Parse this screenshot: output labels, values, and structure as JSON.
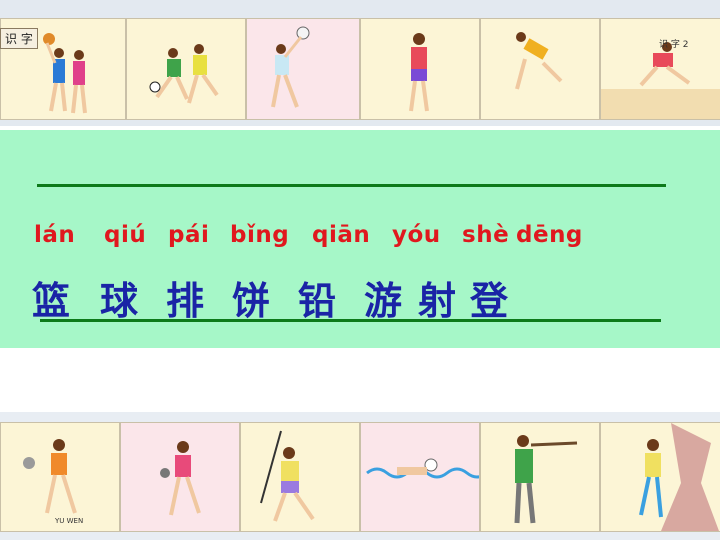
{
  "header": {
    "label": "识 字",
    "page_label": "识 字 2"
  },
  "footer": {
    "book_label": "YU WEN"
  },
  "lesson": {
    "pinyin": [
      "lán",
      "qiú",
      "pái",
      "bǐng",
      "qiān",
      "yóu",
      "shè",
      "dēng"
    ],
    "hanzi": [
      "篮",
      "球",
      "排",
      "饼",
      "铅",
      "游",
      "射",
      "登"
    ]
  },
  "colors": {
    "band": "#a6f7c8",
    "rule": "#0d7a1a",
    "pinyin": "#e0181e",
    "hanzi": "#1a24a6"
  },
  "illustrations": {
    "top": [
      "basketball-illustration",
      "soccer-illustration",
      "volleyball-illustration",
      "table-tennis-illustration",
      "high-jump-illustration",
      "long-jump-illustration"
    ],
    "bottom": [
      "discus-illustration",
      "shot-put-illustration",
      "javelin-illustration",
      "swimming-illustration",
      "shooting-illustration",
      "climbing-illustration"
    ]
  }
}
